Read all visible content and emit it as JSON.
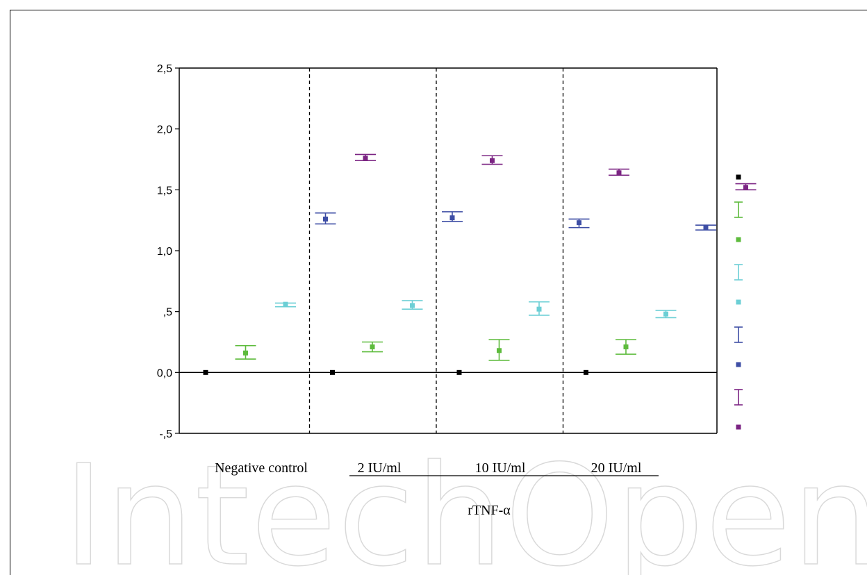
{
  "watermark": "IntechOpen",
  "chart_data": {
    "type": "scatter",
    "title": "",
    "xlabel": "rTNF-α",
    "ylabel": "",
    "ylim": [
      -0.5,
      2.5
    ],
    "yticks": [
      -0.5,
      0.0,
      0.5,
      1.0,
      1.5,
      2.0,
      2.5
    ],
    "ytick_labels": [
      "-,5",
      "0,0",
      ",5",
      "1,0",
      "1,5",
      "2,0",
      "2,5"
    ],
    "categories": [
      "Negative control",
      "2 IU/ml",
      "10 IU/ml",
      "20 IU/ml"
    ],
    "underlined_categories": [
      "2 IU/ml",
      "10 IU/ml",
      "20 IU/ml"
    ],
    "grid": false,
    "group_separators": "dashed",
    "zero_line": true,
    "legend": {
      "position": "right",
      "labels_visible": false
    },
    "series": [
      {
        "color": "#000000",
        "error_bars": false,
        "values": [
          0.0,
          0.0,
          0.0,
          0.0
        ]
      },
      {
        "color": "#5dbb3c",
        "error_bars": true,
        "values": [
          0.16,
          0.21,
          0.18,
          0.21
        ],
        "lower": [
          0.11,
          0.17,
          0.1,
          0.15
        ],
        "upper": [
          0.22,
          0.25,
          0.27,
          0.27
        ]
      },
      {
        "color": "#6ccfd5",
        "error_bars": true,
        "values": [
          0.56,
          0.55,
          0.52,
          0.48
        ],
        "lower": [
          0.54,
          0.52,
          0.47,
          0.45
        ],
        "upper": [
          0.57,
          0.59,
          0.58,
          0.51
        ]
      },
      {
        "color": "#3e4ea5",
        "error_bars": true,
        "values": [
          1.26,
          1.27,
          1.23,
          1.19
        ],
        "lower": [
          1.22,
          1.24,
          1.19,
          1.17
        ],
        "upper": [
          1.31,
          1.32,
          1.26,
          1.21
        ]
      },
      {
        "color": "#7b2483",
        "error_bars": true,
        "values": [
          1.76,
          1.74,
          1.64,
          1.52
        ],
        "lower": [
          1.74,
          1.71,
          1.62,
          1.5
        ],
        "upper": [
          1.79,
          1.78,
          1.67,
          1.55
        ]
      }
    ]
  }
}
